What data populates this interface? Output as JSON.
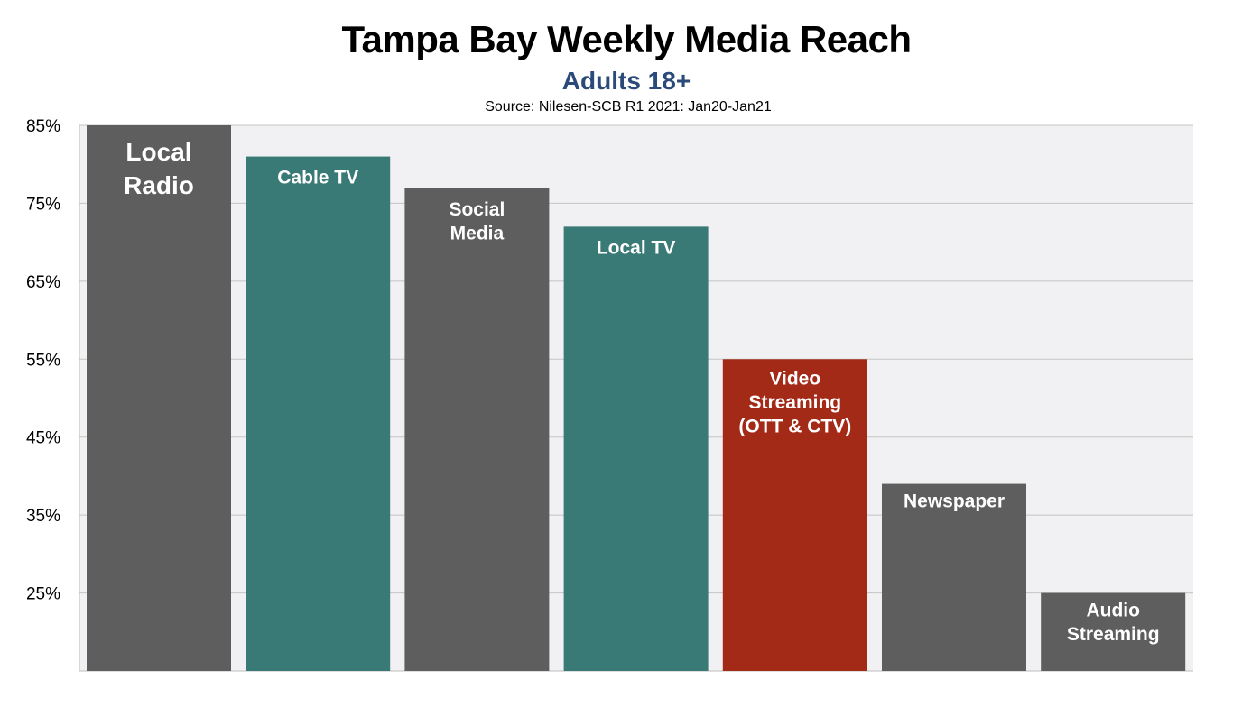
{
  "chart_data": {
    "type": "bar",
    "title": "Tampa Bay Weekly Media Reach",
    "subtitle": "Adults 18+",
    "source": "Source: Nilesen-SCB R1 2021: Jan20-Jan21",
    "categories": [
      [
        "Local",
        "Radio"
      ],
      [
        "Cable TV"
      ],
      [
        "Social",
        "Media"
      ],
      [
        "Local TV"
      ],
      [
        "Video",
        "Streaming",
        "(OTT & CTV)"
      ],
      [
        "Newspaper"
      ],
      [
        "Audio",
        "Streaming"
      ]
    ],
    "values": [
      85,
      81,
      77,
      72,
      55,
      39,
      25
    ],
    "bar_colors": [
      "#5e5e5e",
      "#3a7a76",
      "#5e5e5e",
      "#3a7a76",
      "#a32a17",
      "#5e5e5e",
      "#5e5e5e"
    ],
    "ylim": [
      15,
      85
    ],
    "yticks": [
      25,
      35,
      45,
      55,
      65,
      75,
      85
    ],
    "ytick_labels": [
      "25%",
      "35%",
      "45%",
      "55%",
      "65%",
      "75%",
      "85%"
    ],
    "grid": true,
    "plot_background": "#f1f1f3",
    "xlabel": "",
    "ylabel": ""
  }
}
